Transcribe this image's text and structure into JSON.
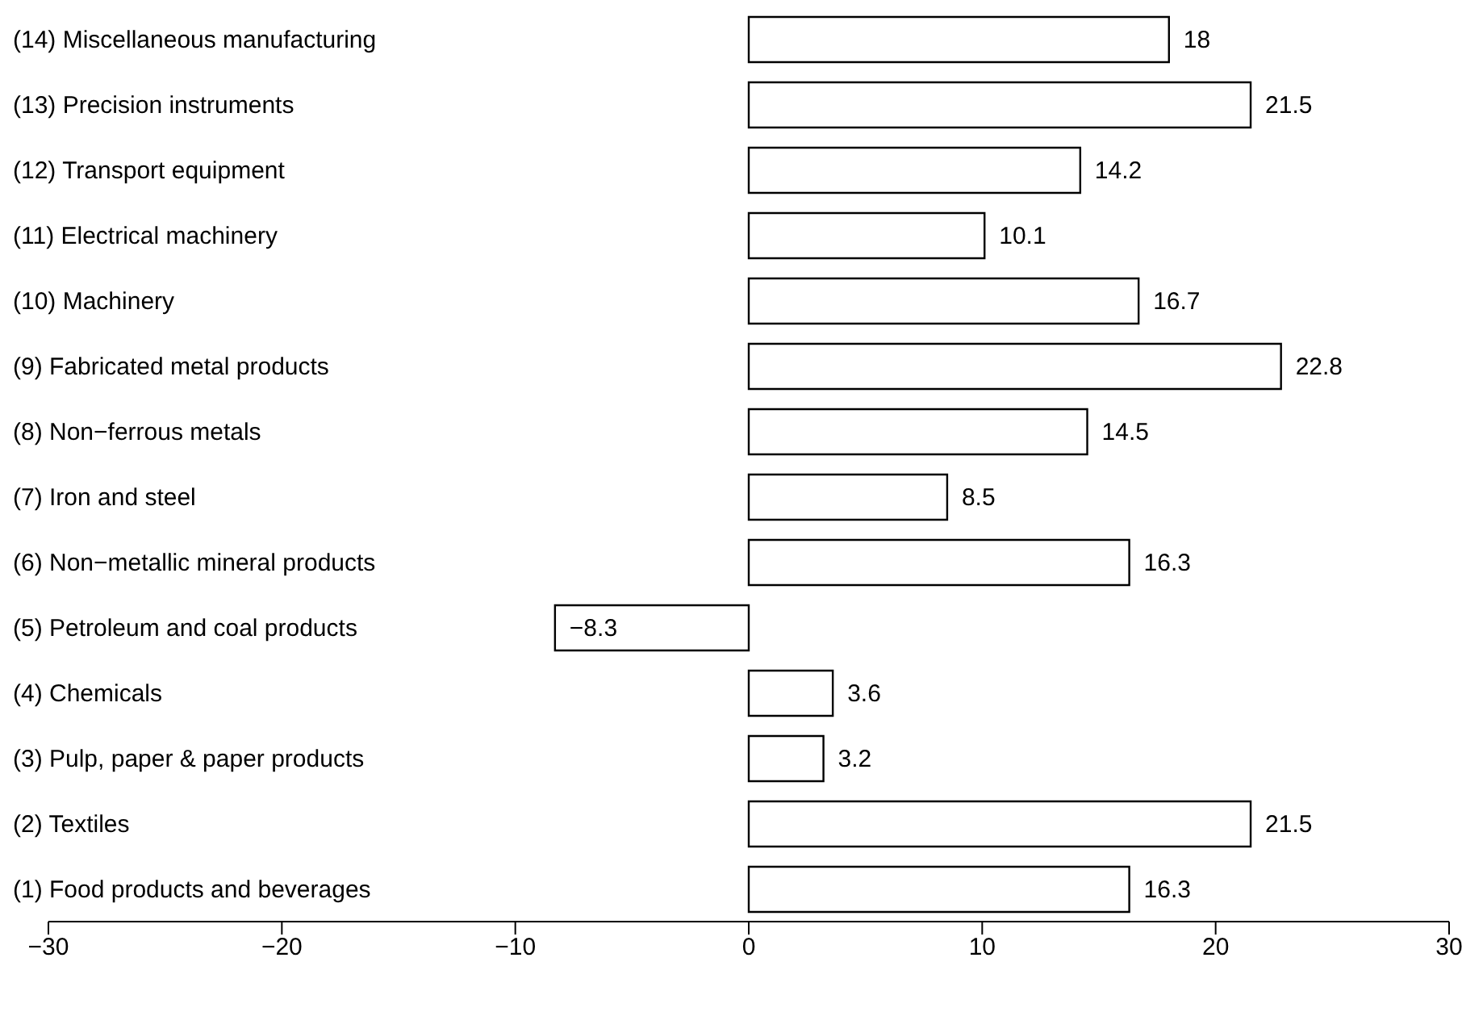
{
  "chart_data": {
    "type": "bar",
    "orientation": "horizontal",
    "categories": [
      "(14) Miscellaneous manufacturing",
      "(13) Precision instruments",
      "(12) Transport equipment",
      "(11) Electrical machinery",
      "(10) Machinery",
      "(9) Fabricated metal products",
      "(8) Non−ferrous metals",
      "(7) Iron and steel",
      "(6) Non−metallic mineral products",
      "(5) Petroleum and coal products",
      "(4) Chemicals",
      "(3) Pulp, paper & paper products",
      "(2) Textiles",
      "(1) Food products and beverages"
    ],
    "values": [
      18,
      21.5,
      14.2,
      10.1,
      16.7,
      22.8,
      14.5,
      8.5,
      16.3,
      -8.3,
      3.6,
      3.2,
      21.5,
      16.3
    ],
    "color": "#ffffff",
    "xlim": [
      -30,
      30
    ],
    "xticks": [
      {
        "value": -30,
        "label": "−30"
      },
      {
        "value": -20,
        "label": "−20"
      },
      {
        "value": -10,
        "label": "−10"
      },
      0,
      10,
      20,
      30
    ],
    "data_labels": true,
    "grid": false
  }
}
